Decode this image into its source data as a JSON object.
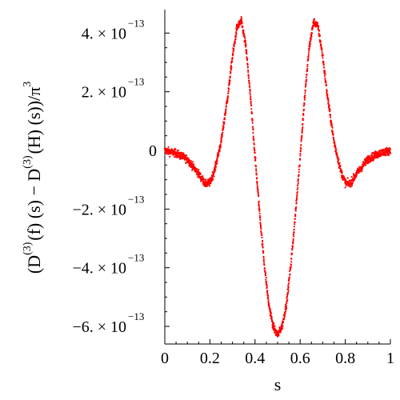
{
  "chart_data": {
    "type": "scatter",
    "xlabel": "s",
    "ylabel_parts": [
      {
        "text": "(D",
        "sup": ""
      },
      {
        "text": "",
        "sup": "(3)"
      },
      {
        "text": "(f) (s) − D",
        "sup": ""
      },
      {
        "text": "",
        "sup": "(3)"
      },
      {
        "text": "(H) (s))/π",
        "sup": ""
      },
      {
        "text": "",
        "sup": "3"
      }
    ],
    "xlim": [
      0,
      1
    ],
    "ylim": [
      -6.6e-13,
      4.8e-13
    ],
    "x_ticks": [
      {
        "value": 0,
        "label": "0"
      },
      {
        "value": 0.2,
        "label": "0.2"
      },
      {
        "value": 0.4,
        "label": "0.4"
      },
      {
        "value": 0.6,
        "label": "0.6"
      },
      {
        "value": 0.8,
        "label": "0.8"
      },
      {
        "value": 1,
        "label": "1"
      }
    ],
    "y_ticks": [
      {
        "value": 4e-13,
        "label": "4. × 10",
        "exp": "−13"
      },
      {
        "value": 2e-13,
        "label": "2. × 10",
        "exp": "−13"
      },
      {
        "value": 0,
        "label": "0",
        "exp": ""
      },
      {
        "value": -2e-13,
        "label": "−2. × 10",
        "exp": "−13"
      },
      {
        "value": -4e-13,
        "label": "−4. × 10",
        "exp": "−13"
      },
      {
        "value": -6e-13,
        "label": "−6. × 10",
        "exp": "−13"
      }
    ],
    "series": [
      {
        "color": "#ff0000",
        "x": [
          0,
          0.05,
          0.1,
          0.15,
          0.18,
          0.2,
          0.22,
          0.25,
          0.28,
          0.3,
          0.32,
          0.34,
          0.36,
          0.38,
          0.4,
          0.42,
          0.44,
          0.46,
          0.48,
          0.5,
          0.52,
          0.54,
          0.56,
          0.58,
          0.6,
          0.62,
          0.64,
          0.66,
          0.68,
          0.7,
          0.72,
          0.75,
          0.78,
          0.8,
          0.82,
          0.85,
          0.9,
          0.95,
          1
        ],
        "y": [
          0,
          -1e-14,
          -3e-14,
          -8e-14,
          -1.15e-13,
          -1.1e-13,
          -7e-14,
          3e-14,
          1.9e-13,
          3.2e-13,
          4.2e-13,
          4.4e-13,
          3.5e-13,
          1.8e-13,
          -2e-14,
          -2.1e-13,
          -3.8e-13,
          -5.2e-13,
          -6e-13,
          -6.3e-13,
          -6e-13,
          -5.2e-13,
          -3.8e-13,
          -2.1e-13,
          -2e-14,
          1.8e-13,
          3.5e-13,
          4.4e-13,
          4.2e-13,
          3.2e-13,
          1.9e-13,
          3e-14,
          -7e-14,
          -1.1e-13,
          -1.15e-13,
          -8e-14,
          -3e-14,
          -1e-14,
          0
        ],
        "noise": 2.2e-14,
        "point_count": 1800
      }
    ]
  }
}
